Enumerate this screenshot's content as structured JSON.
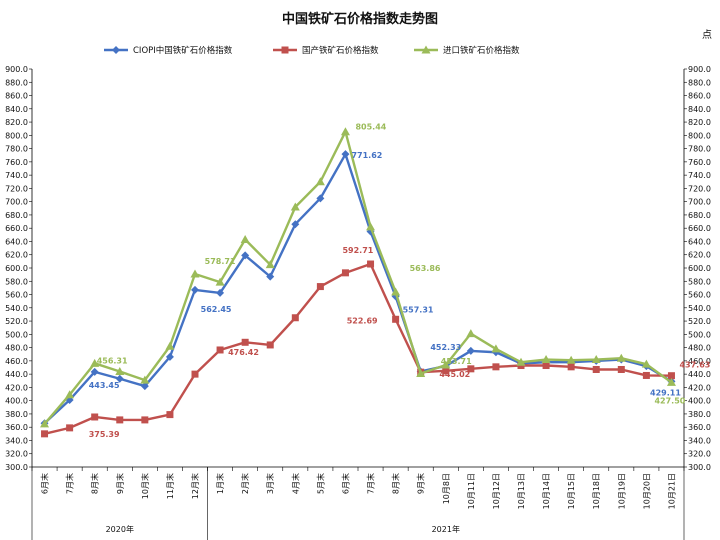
{
  "chart_data": {
    "type": "line",
    "title": "中国铁矿石价格指数走势图",
    "unit_label": "点",
    "ylim": [
      300,
      900
    ],
    "ytick_step": 20,
    "categories": [
      "6月末",
      "7月末",
      "8月末",
      "9月末",
      "10月末",
      "11月末",
      "12月末",
      "1月末",
      "2月末",
      "3月末",
      "4月末",
      "5月末",
      "6月末",
      "7月末",
      "8月末",
      "9月末",
      "10月8日",
      "10月11日",
      "10月12日",
      "10月13日",
      "10月14日",
      "10月15日",
      "10月18日",
      "10月19日",
      "10月20日",
      "10月21日"
    ],
    "year_groups": [
      {
        "label": "2020年",
        "start": 0,
        "end": 6
      },
      {
        "label": "2021年",
        "start": 7,
        "end": 25
      }
    ],
    "series": [
      {
        "name": "CIOPI中国铁矿石价格指数",
        "color": "#4472C4",
        "marker": "diamond",
        "values": [
          366,
          401,
          443.45,
          433,
          422,
          466,
          567,
          562.45,
          619,
          587,
          666,
          705,
          771.62,
          655,
          557.31,
          444,
          452.33,
          475,
          473,
          456,
          458,
          458,
          460,
          462,
          452,
          429.11
        ]
      },
      {
        "name": "国产铁矿石价格指数",
        "color": "#C0504D",
        "marker": "square",
        "values": [
          350,
          359,
          375.39,
          371,
          371,
          379,
          440,
          476.42,
          488,
          484,
          525,
          572,
          592.71,
          606,
          522.69,
          443,
          445.02,
          448,
          451,
          453,
          453,
          451,
          447,
          447,
          438,
          437.63
        ]
      },
      {
        "name": "进口铁矿石价格指数",
        "color": "#9BBB59",
        "marker": "triangle",
        "values": [
          365,
          409,
          456.31,
          444,
          431,
          482,
          591,
          578.71,
          643,
          605,
          692,
          730,
          805.44,
          662,
          563.86,
          441,
          453.71,
          501,
          478,
          458,
          462,
          461,
          462,
          464,
          455,
          427.5
        ]
      }
    ],
    "data_labels": [
      {
        "series": 0,
        "index": 2,
        "text": "443.45"
      },
      {
        "series": 0,
        "index": 7,
        "text": "562.45"
      },
      {
        "series": 0,
        "index": 12,
        "text": "771.62"
      },
      {
        "series": 0,
        "index": 14,
        "text": "557.31"
      },
      {
        "series": 0,
        "index": 16,
        "text": "452.33"
      },
      {
        "series": 0,
        "index": 25,
        "text": "429.11"
      },
      {
        "series": 1,
        "index": 2,
        "text": "375.39"
      },
      {
        "series": 1,
        "index": 7,
        "text": "476.42"
      },
      {
        "series": 1,
        "index": 12,
        "text": "592.71"
      },
      {
        "series": 1,
        "index": 14,
        "text": "522.69"
      },
      {
        "series": 1,
        "index": 16,
        "text": "445.02"
      },
      {
        "series": 1,
        "index": 25,
        "text": "437.63"
      },
      {
        "series": 2,
        "index": 2,
        "text": "456.31"
      },
      {
        "series": 2,
        "index": 7,
        "text": "578.71"
      },
      {
        "series": 2,
        "index": 12,
        "text": "805.44"
      },
      {
        "series": 2,
        "index": 14,
        "text": "563.86"
      },
      {
        "series": 2,
        "index": 16,
        "text": "453.71"
      },
      {
        "series": 2,
        "index": 25,
        "text": "427.50"
      }
    ],
    "legend_position": "top",
    "grid": false
  }
}
